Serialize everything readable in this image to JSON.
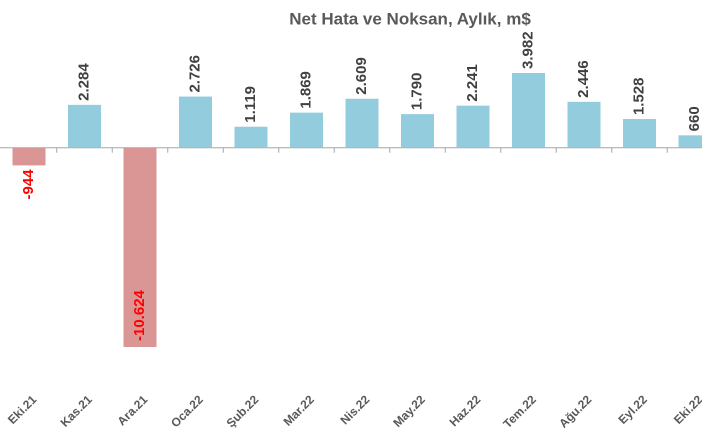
{
  "chart_data": {
    "type": "bar",
    "title": "Net Hata ve Noksan, Aylık, m$",
    "categories": [
      "Eki.21",
      "Kas.21",
      "Ara.21",
      "Oca.22",
      "Şub.22",
      "Mar.22",
      "Nis.22",
      "May.22",
      "Haz.22",
      "Tem.22",
      "Ağu.22",
      "Eyl.22",
      "Eki.22"
    ],
    "values": [
      -944,
      2284,
      -10624,
      2726,
      1119,
      1869,
      2609,
      1790,
      2241,
      3982,
      2446,
      1528,
      660
    ],
    "value_labels": [
      "-944",
      "2.284",
      "-10.624",
      "2.726",
      "1.119",
      "1.869",
      "2.609",
      "1.790",
      "2.241",
      "3.982",
      "2.446",
      "1.528",
      "660"
    ],
    "color": "#93cddd",
    "negative_color": "#d99694",
    "label_color": "#404040",
    "negative_label_color": "#ff0000"
  }
}
